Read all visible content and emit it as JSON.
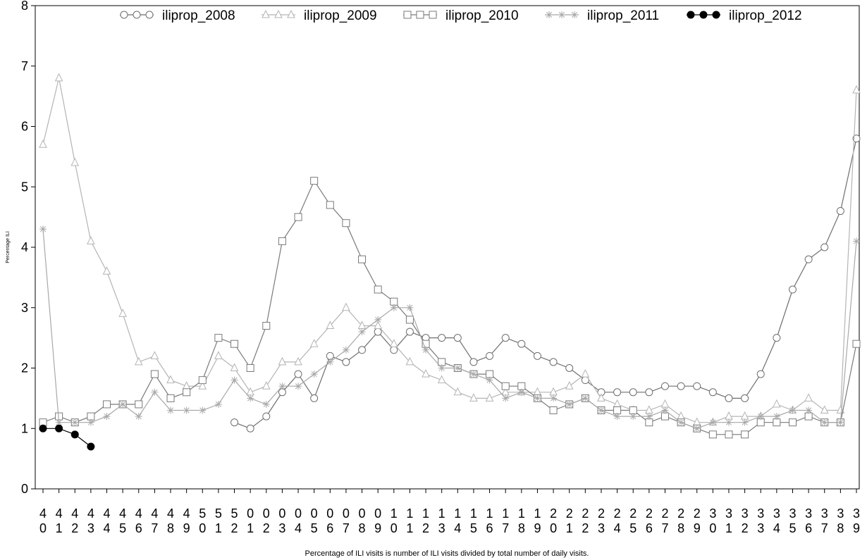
{
  "chart_data": {
    "type": "line",
    "xlabel": "Percentage of ILI visits is number of ILI visits divided by total number of daily visits.",
    "ylabel": "Percentage ILI",
    "ylim": [
      0,
      8
    ],
    "yticks": [
      0,
      1,
      2,
      3,
      4,
      5,
      6,
      7,
      8
    ],
    "legend_position": "top",
    "categories": [
      "40",
      "41",
      "42",
      "43",
      "44",
      "45",
      "46",
      "47",
      "48",
      "49",
      "50",
      "51",
      "52",
      "01",
      "02",
      "03",
      "04",
      "05",
      "06",
      "07",
      "08",
      "09",
      "10",
      "11",
      "12",
      "13",
      "14",
      "15",
      "16",
      "17",
      "18",
      "19",
      "20",
      "21",
      "22",
      "23",
      "24",
      "25",
      "26",
      "27",
      "28",
      "29",
      "30",
      "31",
      "32",
      "33",
      "34",
      "35",
      "36",
      "37",
      "38",
      "39"
    ],
    "series": [
      {
        "name": "iliprop_2008",
        "color": "#6e6e6e",
        "marker": "circle",
        "values": [
          null,
          null,
          null,
          null,
          null,
          null,
          null,
          null,
          null,
          null,
          null,
          null,
          1.1,
          1.0,
          1.2,
          1.6,
          1.9,
          1.5,
          2.2,
          2.1,
          2.3,
          2.6,
          2.3,
          2.6,
          2.5,
          2.5,
          2.5,
          2.1,
          2.2,
          2.5,
          2.4,
          2.2,
          2.1,
          2.0,
          1.8,
          1.6,
          1.6,
          1.6,
          1.6,
          1.7,
          1.7,
          1.7,
          1.6,
          1.5,
          1.5,
          1.9,
          2.5,
          3.3,
          3.8,
          4.0,
          4.6,
          5.8
        ]
      },
      {
        "name": "iliprop_2009",
        "color": "#b4b4b4",
        "marker": "triangle",
        "values": [
          5.7,
          6.8,
          5.4,
          4.1,
          3.6,
          2.9,
          2.1,
          2.2,
          1.8,
          1.7,
          1.7,
          2.2,
          2.0,
          1.6,
          1.7,
          2.1,
          2.1,
          2.4,
          2.7,
          3.0,
          2.7,
          2.7,
          2.4,
          2.1,
          1.9,
          1.8,
          1.6,
          1.5,
          1.5,
          1.6,
          1.6,
          1.6,
          1.6,
          1.7,
          1.9,
          1.5,
          1.4,
          1.3,
          1.3,
          1.4,
          1.2,
          1.1,
          1.1,
          1.2,
          1.2,
          1.2,
          1.4,
          1.3,
          1.5,
          1.3,
          1.3,
          6.6
        ]
      },
      {
        "name": "iliprop_2010",
        "color": "#7a7a7a",
        "marker": "square",
        "values": [
          1.1,
          1.2,
          1.1,
          1.2,
          1.4,
          1.4,
          1.4,
          1.9,
          1.5,
          1.6,
          1.8,
          2.5,
          2.4,
          2.0,
          2.7,
          4.1,
          4.5,
          5.1,
          4.7,
          4.4,
          3.8,
          3.3,
          3.1,
          2.8,
          2.4,
          2.1,
          2.0,
          1.9,
          1.9,
          1.7,
          1.7,
          1.5,
          1.3,
          1.4,
          1.5,
          1.3,
          1.3,
          1.3,
          1.1,
          1.2,
          1.1,
          1.0,
          0.9,
          0.9,
          0.9,
          1.1,
          1.1,
          1.1,
          1.2,
          1.1,
          1.1,
          2.4
        ]
      },
      {
        "name": "iliprop_2011",
        "color": "#a8a8a8",
        "marker": "star",
        "values": [
          4.3,
          1.1,
          1.1,
          1.1,
          1.2,
          1.4,
          1.2,
          1.6,
          1.3,
          1.3,
          1.3,
          1.4,
          1.8,
          1.5,
          1.4,
          1.7,
          1.7,
          1.9,
          2.1,
          2.3,
          2.6,
          2.8,
          3.0,
          3.0,
          2.3,
          2.0,
          2.0,
          1.9,
          1.8,
          1.5,
          1.6,
          1.5,
          1.5,
          1.4,
          1.5,
          1.3,
          1.2,
          1.2,
          1.2,
          1.3,
          1.1,
          1.0,
          1.1,
          1.1,
          1.1,
          1.2,
          1.2,
          1.3,
          1.3,
          1.1,
          1.1,
          4.1
        ]
      },
      {
        "name": "iliprop_2012",
        "color": "#000000",
        "marker": "dot",
        "values": [
          1.0,
          1.0,
          0.9,
          0.7,
          null,
          null,
          null,
          null,
          null,
          null,
          null,
          null,
          null,
          null,
          null,
          null,
          null,
          null,
          null,
          null,
          null,
          null,
          null,
          null,
          null,
          null,
          null,
          null,
          null,
          null,
          null,
          null,
          null,
          null,
          null,
          null,
          null,
          null,
          null,
          null,
          null,
          null,
          null,
          null,
          null,
          null,
          null,
          null,
          null,
          null,
          null,
          null
        ]
      }
    ]
  }
}
